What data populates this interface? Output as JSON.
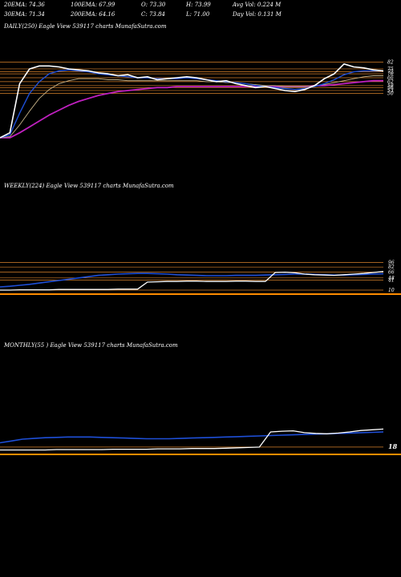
{
  "header": {
    "ema20": "20EMA: 74.36",
    "ema100": "100EMA: 67.99",
    "open": "O: 73.30",
    "high": "H: 73.99",
    "avg_vol": "Avg Vol: 0.224  M",
    "ema30": "30EMA: 71.34",
    "ema200": "200EMA: 64.16",
    "close": "C: 73.84",
    "low": "L: 71.00",
    "day_vol": "Day Vol: 0.131 M"
  },
  "colors": {
    "background": "#000000",
    "price": "#ffffff",
    "ema_short": "#1e4fd8",
    "ema_long": "#c020c0",
    "ema_mid": "#c8b48a",
    "level": "#d9822b",
    "baseline": "#ff8c00"
  },
  "chart_data": [
    {
      "type": "line",
      "title": "DAILY(250) Eagle   View  539117 charts MunafaSutra.com",
      "price_levels": [
        82,
        75,
        72,
        70,
        66,
        62,
        58,
        56,
        53,
        50
      ],
      "series": [
        {
          "values": [
            5,
            10,
            60,
            75,
            78,
            78,
            77,
            75,
            74,
            73,
            71,
            70,
            68,
            69,
            66,
            67,
            64,
            65,
            66,
            67,
            66,
            64,
            62,
            63,
            60,
            58,
            56,
            57,
            55,
            53,
            52,
            54,
            58,
            65,
            70,
            80,
            77,
            76,
            74,
            73
          ]
        },
        {
          "values": [
            5,
            8,
            30,
            50,
            62,
            70,
            73,
            74,
            73,
            72,
            70,
            69,
            68,
            67,
            66,
            66,
            65,
            65,
            65,
            66,
            65,
            64,
            63,
            62,
            61,
            60,
            58,
            57,
            56,
            55,
            54,
            55,
            57,
            60,
            64,
            69,
            72,
            73,
            73,
            73
          ]
        },
        {
          "values": [
            5,
            6,
            18,
            32,
            45,
            54,
            60,
            63,
            65,
            65,
            65,
            64,
            64,
            63,
            63,
            63,
            63,
            63,
            63,
            63,
            63,
            62,
            62,
            61,
            61,
            60,
            59,
            58,
            58,
            57,
            57,
            57,
            58,
            59,
            61,
            63,
            65,
            67,
            68,
            68
          ]
        },
        {
          "values": [
            5,
            5,
            10,
            16,
            22,
            28,
            33,
            38,
            42,
            45,
            48,
            50,
            52,
            53,
            54,
            55,
            56,
            56,
            57,
            57,
            57,
            57,
            57,
            57,
            57,
            57,
            57,
            57,
            57,
            57,
            57,
            57,
            58,
            58,
            59,
            60,
            61,
            62,
            63,
            63
          ]
        }
      ]
    },
    {
      "type": "line",
      "title": "WEEKLY(224) Eagle   View  539117 charts MunafaSutra.com",
      "price_levels": [
        96,
        82,
        66,
        48,
        41,
        10
      ],
      "series": [
        {
          "values": [
            10,
            10,
            11,
            11,
            11,
            11,
            12,
            12,
            12,
            12,
            12,
            12,
            13,
            13,
            13,
            35,
            36,
            37,
            37,
            38,
            38,
            37,
            37,
            37,
            38,
            38,
            37,
            37,
            65,
            66,
            64,
            60,
            58,
            57,
            56,
            58,
            60,
            62,
            65,
            68
          ]
        },
        {
          "values": [
            20,
            22,
            25,
            28,
            32,
            36,
            40,
            44,
            48,
            52,
            56,
            58,
            60,
            61,
            62,
            62,
            61,
            60,
            58,
            57,
            56,
            55,
            55,
            55,
            56,
            56,
            56,
            57,
            58,
            59,
            60,
            60,
            59,
            58,
            57,
            57,
            58,
            59,
            60,
            61
          ]
        }
      ]
    },
    {
      "type": "line",
      "title": "MONTHLY(55                        ) Eagle   View  539117 charts MunafaSutra.com",
      "price_levels": [
        18
      ],
      "series": [
        {
          "values": [
            10,
            10,
            10,
            10,
            10,
            11,
            11,
            11,
            11,
            11,
            12,
            12,
            12,
            12,
            13,
            13,
            13,
            14,
            14,
            14,
            15,
            16,
            17,
            18,
            60,
            62,
            63,
            58,
            56,
            55,
            57,
            60,
            64,
            66,
            68
          ]
        },
        {
          "values": [
            30,
            35,
            40,
            42,
            44,
            45,
            46,
            46,
            46,
            45,
            44,
            43,
            42,
            41,
            41,
            41,
            42,
            43,
            44,
            45,
            46,
            47,
            48,
            49,
            50,
            51,
            52,
            53,
            54,
            55,
            56,
            57,
            58,
            59,
            60
          ]
        }
      ]
    }
  ]
}
